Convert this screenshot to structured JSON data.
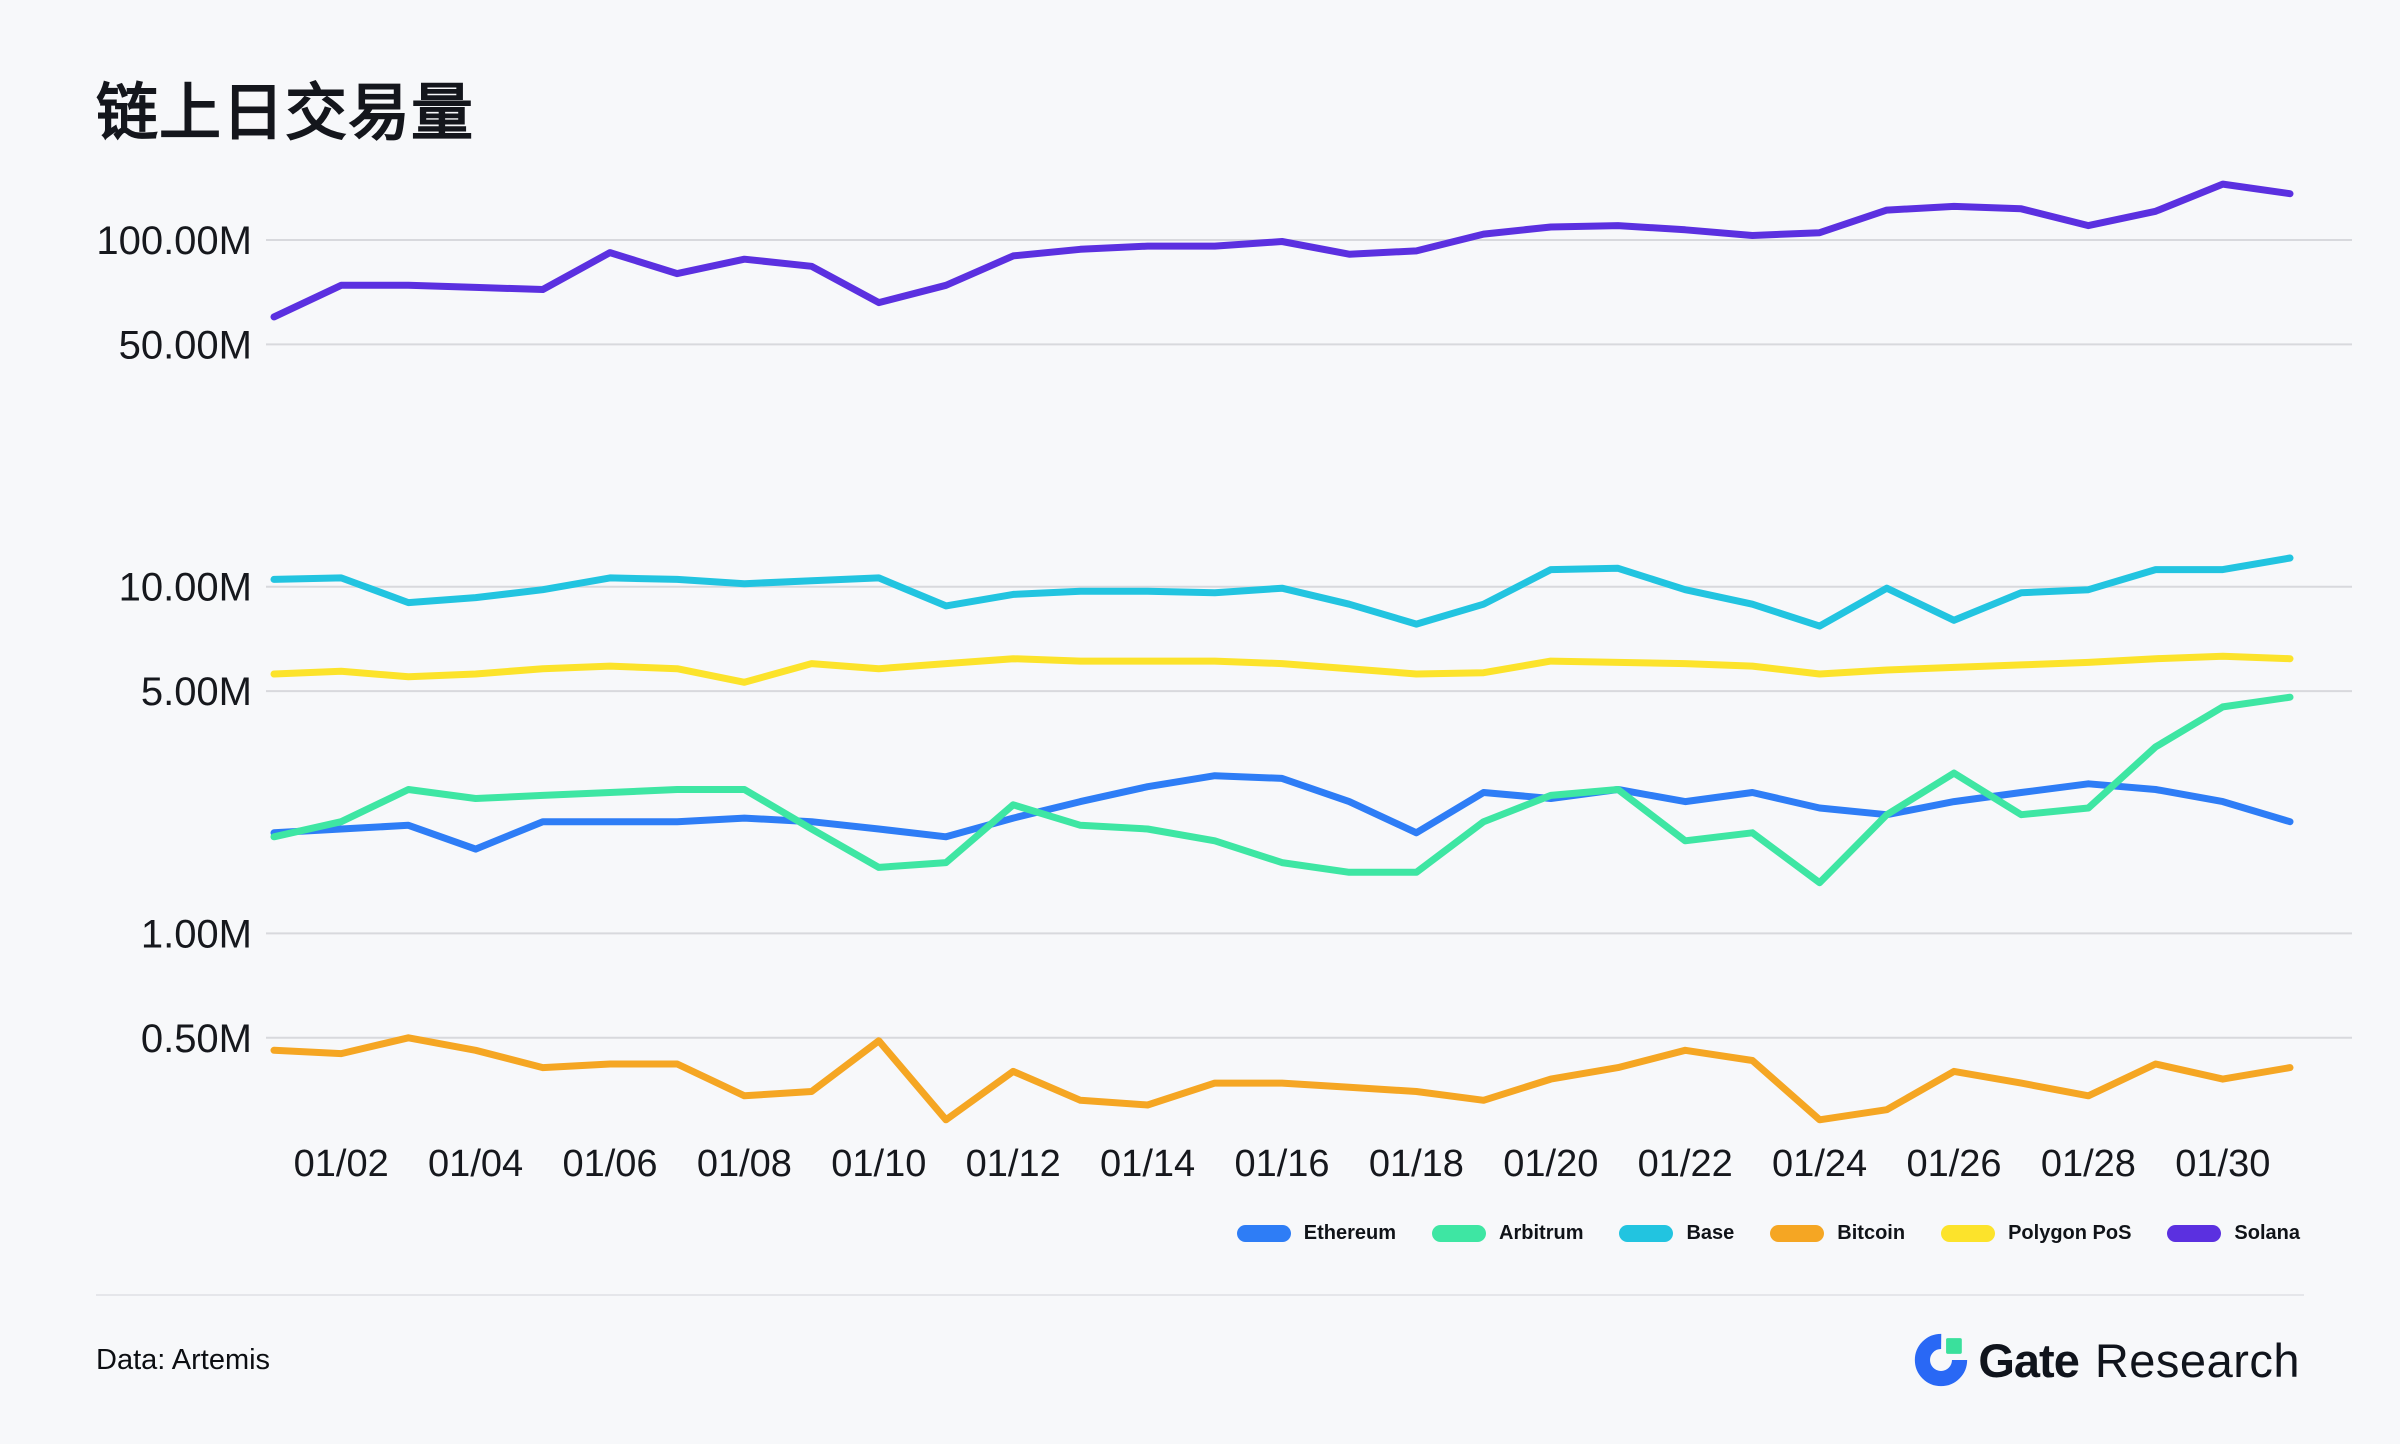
{
  "title": "链上日交易量",
  "footer": {
    "source": "Data: Artemis",
    "brand_bold": "Gate",
    "brand_light": "Research"
  },
  "colors": {
    "background": "#f7f8fa",
    "gridline": "#d8d9dd",
    "text": "#16181d",
    "divider": "#e5e6ea",
    "logo_blue": "#2968f5",
    "logo_green": "#3ae09c"
  },
  "chart_data": {
    "type": "line",
    "y_scale": "log",
    "grid": true,
    "legend_position": "bottom-right",
    "unit": "M",
    "ylim": [
      0.2,
      200
    ],
    "x": [
      "01/01",
      "01/02",
      "01/03",
      "01/04",
      "01/05",
      "01/06",
      "01/07",
      "01/08",
      "01/09",
      "01/10",
      "01/11",
      "01/12",
      "01/13",
      "01/14",
      "01/15",
      "01/16",
      "01/17",
      "01/18",
      "01/19",
      "01/20",
      "01/21",
      "01/22",
      "01/23",
      "01/24",
      "01/25",
      "01/26",
      "01/27",
      "01/28",
      "01/29",
      "01/30",
      "01/31"
    ],
    "x_tick_labels": [
      "01/02",
      "01/04",
      "01/06",
      "01/08",
      "01/10",
      "01/12",
      "01/14",
      "01/16",
      "01/18",
      "01/20",
      "01/22",
      "01/24",
      "01/26",
      "01/28",
      "01/30"
    ],
    "y_ticks": [
      {
        "label": "100.00M",
        "value": 100
      },
      {
        "label": "50.00M",
        "value": 50
      },
      {
        "label": "10.00M",
        "value": 10
      },
      {
        "label": "5.00M",
        "value": 5
      },
      {
        "label": "1.00M",
        "value": 1
      },
      {
        "label": "0.50M",
        "value": 0.5
      }
    ],
    "series": [
      {
        "name": "Ethereum",
        "color": "#2e7df6",
        "values": [
          1.95,
          2.0,
          2.05,
          1.75,
          2.1,
          2.1,
          2.1,
          2.15,
          2.1,
          2.0,
          1.9,
          2.15,
          2.4,
          2.65,
          2.85,
          2.8,
          2.4,
          1.95,
          2.55,
          2.45,
          2.6,
          2.4,
          2.55,
          2.3,
          2.2,
          2.4,
          2.55,
          2.7,
          2.6,
          2.4,
          2.1
        ]
      },
      {
        "name": "Arbitrum",
        "color": "#3ee6a3",
        "values": [
          1.9,
          2.1,
          2.6,
          2.45,
          2.5,
          2.55,
          2.6,
          2.6,
          2.0,
          1.55,
          1.6,
          2.35,
          2.05,
          2.0,
          1.85,
          1.6,
          1.5,
          1.5,
          2.1,
          2.5,
          2.6,
          1.85,
          1.95,
          1.4,
          2.2,
          2.9,
          2.2,
          2.3,
          3.45,
          4.5,
          4.8
        ]
      },
      {
        "name": "Base",
        "color": "#22c4e0",
        "values": [
          10.5,
          10.6,
          9.0,
          9.3,
          9.8,
          10.6,
          10.5,
          10.2,
          10.4,
          10.6,
          8.8,
          9.5,
          9.7,
          9.7,
          9.6,
          9.9,
          8.9,
          7.8,
          8.9,
          11.2,
          11.3,
          9.8,
          8.9,
          7.7,
          9.9,
          8.0,
          9.6,
          9.8,
          11.2,
          11.2,
          12.1
        ]
      },
      {
        "name": "Bitcoin",
        "color": "#f5a623",
        "values": [
          0.46,
          0.45,
          0.5,
          0.46,
          0.41,
          0.42,
          0.42,
          0.34,
          0.35,
          0.49,
          0.29,
          0.4,
          0.33,
          0.32,
          0.37,
          0.37,
          0.36,
          0.35,
          0.33,
          0.38,
          0.41,
          0.46,
          0.43,
          0.29,
          0.31,
          0.4,
          0.37,
          0.34,
          0.42,
          0.38,
          0.41
        ]
      },
      {
        "name": "Polygon PoS",
        "color": "#fce32b",
        "values": [
          5.6,
          5.7,
          5.5,
          5.6,
          5.8,
          5.9,
          5.8,
          5.3,
          6.0,
          5.8,
          6.0,
          6.2,
          6.1,
          6.1,
          6.1,
          6.0,
          5.8,
          5.6,
          5.65,
          6.1,
          6.05,
          6.0,
          5.9,
          5.6,
          5.75,
          5.85,
          5.95,
          6.05,
          6.2,
          6.3,
          6.2
        ]
      },
      {
        "name": "Solana",
        "color": "#5b30e0",
        "values": [
          60,
          74,
          74,
          73,
          72,
          92,
          80,
          88,
          84,
          66,
          74,
          90,
          94,
          96,
          96,
          99,
          91,
          93,
          104,
          109,
          110,
          107,
          103,
          105,
          122,
          125,
          123,
          110,
          121,
          145,
          136
        ]
      }
    ]
  }
}
